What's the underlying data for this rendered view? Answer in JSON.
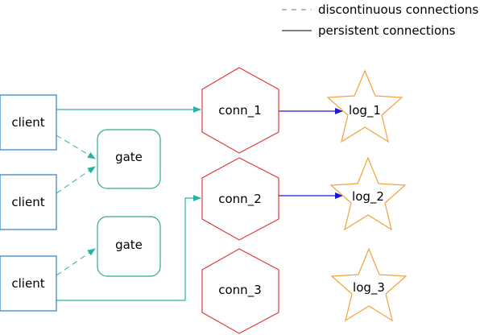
{
  "legend": {
    "dashed_label": "discontinuous connections",
    "solid_label": "persistent connections"
  },
  "nodes": {
    "client_1": "client",
    "client_2": "client",
    "client_3": "client",
    "gate_1": "gate",
    "gate_2": "gate",
    "conn_1": "conn_1",
    "conn_2": "conn_2",
    "conn_3": "conn_3",
    "log_1": "log_1",
    "log_2": "log_2",
    "log_3": "log_3"
  },
  "colors": {
    "client_border": "#2a7dc0",
    "gate_border": "#2fae86",
    "conn_border": "#e0383b",
    "log_border": "#f2a33a",
    "teal_edge": "#2ab3a5",
    "blue_edge": "#1a1ad6",
    "legend_line": "#000000",
    "legend_dash": "#777777"
  }
}
